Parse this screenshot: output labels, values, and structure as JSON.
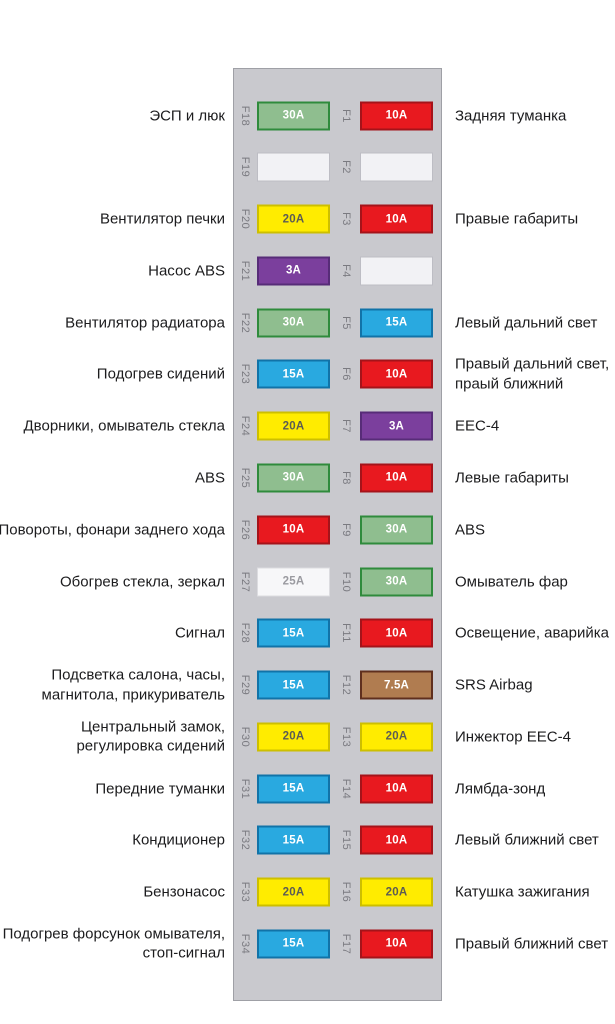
{
  "diagram": {
    "background": "#FFFFFF",
    "panel_fill": "#C9C9CE",
    "panel_border": "#9FA0A6",
    "label_color": "#1C1C1E",
    "fuse_number_color": "#7A7A80"
  },
  "colors": {
    "green": {
      "fill": "#8FBE8F",
      "border": "#2F8B3C",
      "text": "#FFFFFF"
    },
    "red": {
      "fill": "#E8191F",
      "border": "#A5131A",
      "text": "#FFFFFF"
    },
    "yellow": {
      "fill": "#FFEC00",
      "border": "#CDBF00",
      "text": "#5C5C54"
    },
    "blue": {
      "fill": "#29A9E0",
      "border": "#1173A8",
      "text": "#FFFFFF"
    },
    "purple": {
      "fill": "#7B3F9D",
      "border": "#572C78",
      "text": "#FFFFFF"
    },
    "brown": {
      "fill": "#B07C50",
      "border": "#5F2F1E",
      "text": "#FFFFFF"
    },
    "white": {
      "fill": "#F7F7F9",
      "border": "#DCDCE0",
      "text": "#9A9AA0"
    },
    "empty": {
      "fill": "#F2F2F5",
      "border": "#BDBDC4",
      "text": "#9A9AA0"
    }
  },
  "rows": [
    {
      "left": {
        "id": "F18",
        "amp": "30A",
        "color": "green",
        "label": "ЭСП и люк"
      },
      "right": {
        "id": "F1",
        "amp": "10A",
        "color": "red",
        "label": "Задняя туманка"
      }
    },
    {
      "left": {
        "id": "F19",
        "amp": "",
        "color": "empty",
        "label": ""
      },
      "right": {
        "id": "F2",
        "amp": "",
        "color": "empty",
        "label": ""
      }
    },
    {
      "left": {
        "id": "F20",
        "amp": "20A",
        "color": "yellow",
        "label": "Вентилятор печки"
      },
      "right": {
        "id": "F3",
        "amp": "10A",
        "color": "red",
        "label": "Правые габариты"
      }
    },
    {
      "left": {
        "id": "F21",
        "amp": "3A",
        "color": "purple",
        "label": "Насос ABS"
      },
      "right": {
        "id": "F4",
        "amp": "",
        "color": "empty",
        "label": ""
      }
    },
    {
      "left": {
        "id": "F22",
        "amp": "30A",
        "color": "green",
        "label": "Вентилятор радиатора"
      },
      "right": {
        "id": "F5",
        "amp": "15A",
        "color": "blue",
        "label": "Левый дальний свет"
      }
    },
    {
      "left": {
        "id": "F23",
        "amp": "15A",
        "color": "blue",
        "label": "Подогрев сидений"
      },
      "right": {
        "id": "F6",
        "amp": "10A",
        "color": "red",
        "label": "Правый дальний свет,\nпраый ближний"
      }
    },
    {
      "left": {
        "id": "F24",
        "amp": "20A",
        "color": "yellow",
        "label": "Дворники, омыватель стекла"
      },
      "right": {
        "id": "F7",
        "amp": "3A",
        "color": "purple",
        "label": "EEC-4"
      }
    },
    {
      "left": {
        "id": "F25",
        "amp": "30A",
        "color": "green",
        "label": "ABS"
      },
      "right": {
        "id": "F8",
        "amp": "10A",
        "color": "red",
        "label": "Левые габариты"
      }
    },
    {
      "left": {
        "id": "F26",
        "amp": "10A",
        "color": "red",
        "label": "Повороты, фонари заднего хода"
      },
      "right": {
        "id": "F9",
        "amp": "30A",
        "color": "green",
        "label": "ABS"
      }
    },
    {
      "left": {
        "id": "F27",
        "amp": "25A",
        "color": "white",
        "label": "Обогрев стекла, зеркал"
      },
      "right": {
        "id": "F10",
        "amp": "30A",
        "color": "green",
        "label": "Омыватель фар"
      }
    },
    {
      "left": {
        "id": "F28",
        "amp": "15A",
        "color": "blue",
        "label": "Сигнал"
      },
      "right": {
        "id": "F11",
        "amp": "10A",
        "color": "red",
        "label": "Освещение, аварийка"
      }
    },
    {
      "left": {
        "id": "F29",
        "amp": "15A",
        "color": "blue",
        "label": "Подсветка салона, часы,\nмагнитола, прикуриватель"
      },
      "right": {
        "id": "F12",
        "amp": "7.5A",
        "color": "brown",
        "label": "SRS Airbag"
      }
    },
    {
      "left": {
        "id": "F30",
        "amp": "20A",
        "color": "yellow",
        "label": "Центральный замок,\nрегулировка сидений"
      },
      "right": {
        "id": "F13",
        "amp": "20A",
        "color": "yellow",
        "label": "Инжектор EEC-4"
      }
    },
    {
      "left": {
        "id": "F31",
        "amp": "15A",
        "color": "blue",
        "label": "Передние туманки"
      },
      "right": {
        "id": "F14",
        "amp": "10A",
        "color": "red",
        "label": "Лямбда-зонд"
      }
    },
    {
      "left": {
        "id": "F32",
        "amp": "15A",
        "color": "blue",
        "label": "Кондиционер"
      },
      "right": {
        "id": "F15",
        "amp": "10A",
        "color": "red",
        "label": "Левый ближний свет"
      }
    },
    {
      "left": {
        "id": "F33",
        "amp": "20A",
        "color": "yellow",
        "label": "Бензонасос"
      },
      "right": {
        "id": "F16",
        "amp": "20A",
        "color": "yellow",
        "label": "Катушка зажигания"
      }
    },
    {
      "left": {
        "id": "F34",
        "amp": "15A",
        "color": "blue",
        "label": "Подогрев форсунок омывателя,\nстоп-сигнал"
      },
      "right": {
        "id": "F17",
        "amp": "10A",
        "color": "red",
        "label": "Правый ближний свет"
      }
    }
  ]
}
